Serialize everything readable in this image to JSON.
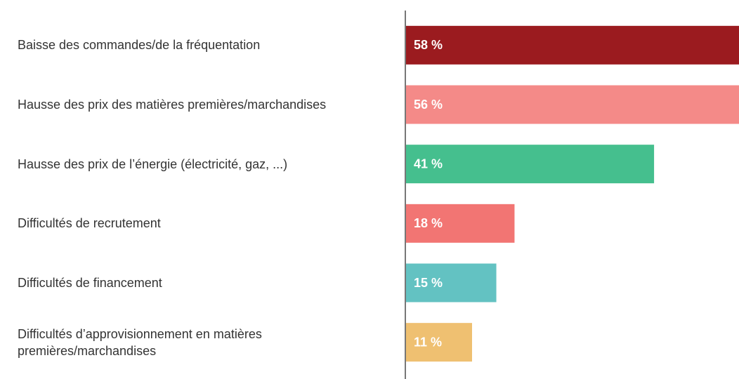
{
  "chart_data": {
    "type": "hbar",
    "categories": [
      "Baisse des commandes/de la fréquentation",
      "Hausse des prix des matières premières/marchandises",
      "Hausse des prix de l’énergie (électricité, gaz, ...)",
      "Difficultés de recrutement",
      "Difficultés de financement",
      "Difficultés d’approvisionnement en matières premières/marchandises"
    ],
    "values": [
      58,
      56,
      41,
      18,
      15,
      11
    ],
    "value_labels": [
      "58 %",
      "56 %",
      "41 %",
      "18 %",
      "15 %",
      "11 %"
    ],
    "colors": [
      "#9b1b1f",
      "#f48a88",
      "#45bf8e",
      "#f27573",
      "#63c2c2",
      "#efc071"
    ],
    "xlim": [
      0,
      55
    ]
  }
}
